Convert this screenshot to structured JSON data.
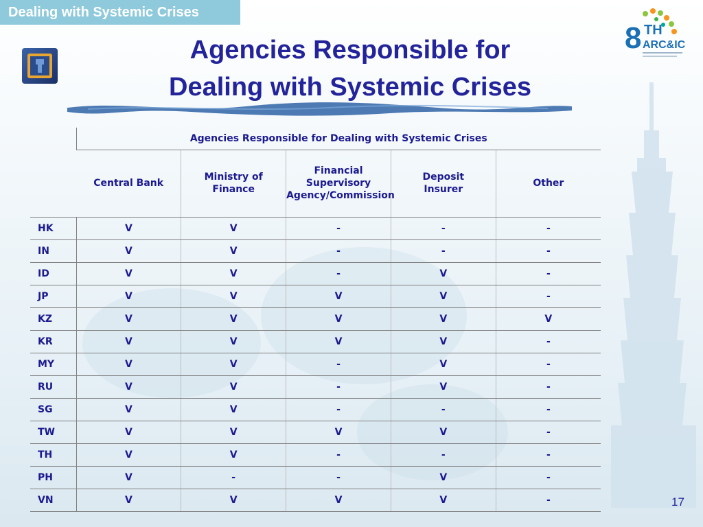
{
  "header_tab": "Dealing with Systemic Crises",
  "title_line1": "Agencies Responsible for",
  "title_line2": "Dealing with Systemic Crises",
  "logo_text": {
    "big": "8",
    "sup": "TH",
    "sub": "ARC&IC"
  },
  "page_number": "17",
  "chart_data": {
    "type": "table",
    "title": "Agencies Responsible for Dealing with Systemic Crises",
    "columns": [
      "Central Bank",
      "Ministry of Finance",
      "Financial Supervisory Agency/Commission",
      "Deposit Insurer",
      "Other"
    ],
    "column_lines": [
      [
        "Central Bank"
      ],
      [
        "Ministry of",
        "Finance"
      ],
      [
        "Financial Supervisory",
        "Agency/Commission"
      ],
      [
        "Deposit",
        "Insurer"
      ],
      [
        "Other"
      ]
    ],
    "rows": [
      {
        "label": "HK",
        "values": [
          "V",
          "V",
          "-",
          "-",
          "-"
        ]
      },
      {
        "label": "IN",
        "values": [
          "V",
          "V",
          "-",
          "-",
          "-"
        ]
      },
      {
        "label": "ID",
        "values": [
          "V",
          "V",
          "-",
          "V",
          "-"
        ]
      },
      {
        "label": "JP",
        "values": [
          "V",
          "V",
          "V",
          "V",
          "-"
        ]
      },
      {
        "label": "KZ",
        "values": [
          "V",
          "V",
          "V",
          "V",
          "V"
        ]
      },
      {
        "label": "KR",
        "values": [
          "V",
          "V",
          "V",
          "V",
          "-"
        ]
      },
      {
        "label": "MY",
        "values": [
          "V",
          "V",
          "-",
          "V",
          "-"
        ]
      },
      {
        "label": "RU",
        "values": [
          "V",
          "V",
          "-",
          "V",
          "-"
        ]
      },
      {
        "label": "SG",
        "values": [
          "V",
          "V",
          "-",
          "-",
          "-"
        ]
      },
      {
        "label": "TW",
        "values": [
          "V",
          "V",
          "V",
          "V",
          "-"
        ]
      },
      {
        "label": "TH",
        "values": [
          "V",
          "V",
          "-",
          "-",
          "-"
        ]
      },
      {
        "label": "PH",
        "values": [
          "V",
          "-",
          "-",
          "V",
          "-"
        ]
      },
      {
        "label": "VN",
        "values": [
          "V",
          "V",
          "V",
          "V",
          "-"
        ]
      }
    ]
  },
  "colors": {
    "title": "#23249a",
    "table_text": "#1c1a8f",
    "tab_background": "#8ec9dc",
    "brush": "#2f63a6"
  }
}
